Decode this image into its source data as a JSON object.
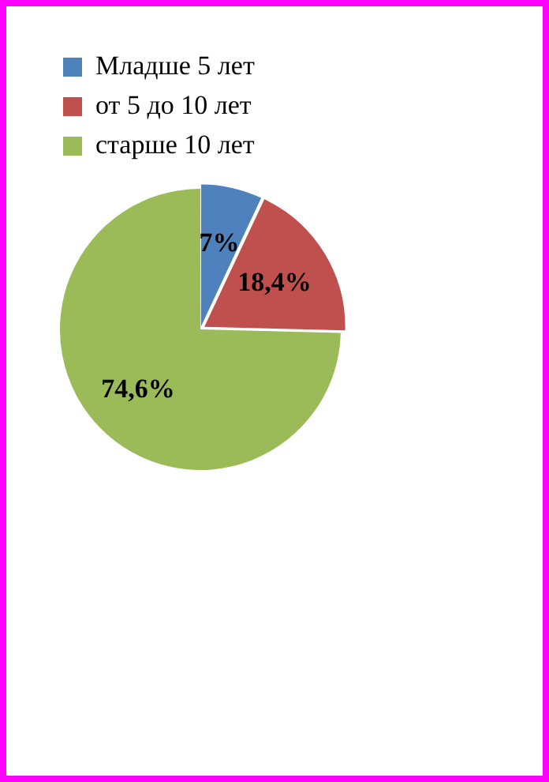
{
  "chart_data": {
    "type": "pie",
    "categories": [
      "Младше 5 лет",
      "от 5 до 10 лет",
      "старше 10 лет"
    ],
    "values": [
      7,
      18.4,
      74.6
    ],
    "colors": [
      "#4f81bd",
      "#c0504d",
      "#9bbb59"
    ],
    "value_labels": [
      "7%",
      "18,4%",
      "74,6%"
    ],
    "legend": "top left"
  }
}
